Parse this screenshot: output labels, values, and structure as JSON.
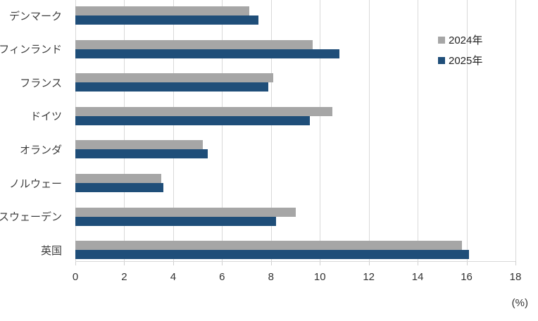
{
  "chart_data": {
    "type": "bar",
    "orientation": "horizontal",
    "title": "",
    "categories": [
      "デンマーク",
      "フィンランド",
      "フランス",
      "ドイツ",
      "オランダ",
      "ノルウェー",
      "スウェーデン",
      "英国"
    ],
    "series": [
      {
        "name": "2024年",
        "color": "#A6A6A6",
        "values": [
          7.1,
          9.7,
          8.1,
          10.5,
          5.2,
          3.5,
          9.0,
          15.8
        ]
      },
      {
        "name": "2025年",
        "color": "#1F4E79",
        "values": [
          7.5,
          10.8,
          7.9,
          9.6,
          5.4,
          3.6,
          8.2,
          16.1
        ]
      }
    ],
    "x_ticks": [
      0,
      2,
      4,
      6,
      8,
      10,
      12,
      14,
      16,
      18
    ],
    "xlim": [
      0,
      18
    ],
    "xlabel": "(%)",
    "ylabel": "",
    "legend_position": "top-right",
    "grid": "vertical"
  },
  "colors": {
    "series_2024": "#A6A6A6",
    "series_2025": "#1F4E79",
    "gridline": "#D9D9D9",
    "axis_text": "#333333",
    "background": "#FFFFFF"
  }
}
